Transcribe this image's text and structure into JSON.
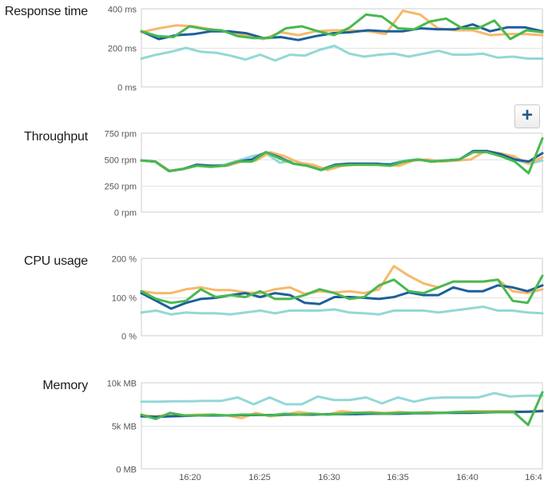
{
  "colors": {
    "series_a": "#f6b96b",
    "series_b": "#1d5f9a",
    "series_c": "#48b94f",
    "series_d": "#93d8d6",
    "grid": "#e3e3e3",
    "frame": "#cfcfcf"
  },
  "add_button": {
    "label": "+",
    "icon": "plus-icon"
  },
  "chart_data": [
    {
      "type": "line",
      "title": "Response time",
      "ylim": [
        0,
        400
      ],
      "yticks": [
        "0 ms",
        "200 ms",
        "400 ms"
      ],
      "ytick_values": [
        0,
        200,
        400
      ],
      "grid": true,
      "series": [
        {
          "values": [
            280,
            300,
            315,
            310,
            295,
            280,
            265,
            245,
            280,
            265,
            285,
            290,
            290,
            285,
            270,
            390,
            370,
            300,
            290,
            290,
            265,
            270,
            270,
            265
          ]
        },
        {
          "values": [
            285,
            245,
            265,
            270,
            285,
            285,
            275,
            250,
            255,
            240,
            260,
            275,
            280,
            290,
            285,
            285,
            300,
            295,
            295,
            320,
            285,
            305,
            305,
            285
          ]
        },
        {
          "values": [
            285,
            260,
            255,
            310,
            295,
            290,
            260,
            250,
            250,
            300,
            310,
            285,
            265,
            305,
            370,
            360,
            300,
            295,
            335,
            350,
            300,
            300,
            340,
            245,
            290,
            280
          ]
        },
        {
          "values": [
            145,
            165,
            180,
            200,
            180,
            175,
            160,
            140,
            165,
            135,
            165,
            160,
            190,
            210,
            170,
            155,
            165,
            170,
            155,
            170,
            185,
            165,
            165,
            170,
            150,
            155,
            145,
            145
          ]
        }
      ]
    },
    {
      "type": "line",
      "title": "Throughput",
      "ylim": [
        0,
        750
      ],
      "yticks": [
        "0 rpm",
        "250 rpm",
        "500 rpm",
        "750 rpm"
      ],
      "ytick_values": [
        0,
        250,
        500,
        750
      ],
      "grid": true,
      "series": [
        {
          "values": [
            490,
            480,
            390,
            410,
            450,
            440,
            440,
            480,
            490,
            570,
            530,
            470,
            450,
            400,
            440,
            450,
            450,
            450,
            440,
            490,
            500,
            480,
            490,
            500,
            580,
            560,
            530,
            460,
            520
          ]
        },
        {
          "values": [
            490,
            480,
            390,
            410,
            450,
            440,
            440,
            480,
            500,
            570,
            520,
            460,
            440,
            400,
            450,
            460,
            460,
            460,
            450,
            480,
            500,
            480,
            490,
            500,
            580,
            580,
            550,
            500,
            480,
            560
          ]
        },
        {
          "values": [
            490,
            480,
            390,
            410,
            440,
            430,
            440,
            480,
            480,
            570,
            510,
            460,
            440,
            400,
            440,
            450,
            450,
            450,
            440,
            480,
            500,
            480,
            490,
            500,
            570,
            570,
            530,
            480,
            370,
            700
          ]
        },
        {
          "values": [
            490,
            480,
            390,
            410,
            440,
            440,
            450,
            490,
            530,
            560,
            470,
            490,
            450,
            410,
            450,
            460,
            460,
            450,
            460,
            490,
            500,
            490,
            490,
            500,
            570,
            570,
            540,
            500,
            460,
            490
          ]
        }
      ]
    },
    {
      "type": "line",
      "title": "CPU usage",
      "ylim": [
        0,
        200
      ],
      "yticks": [
        "0 %",
        "100 %",
        "200 %"
      ],
      "ytick_values": [
        0,
        100,
        200
      ],
      "grid": true,
      "series": [
        {
          "values": [
            115,
            110,
            110,
            120,
            125,
            118,
            118,
            112,
            110,
            120,
            125,
            108,
            115,
            112,
            115,
            110,
            120,
            180,
            155,
            135,
            125,
            140,
            140,
            140,
            145,
            115,
            110,
            120
          ]
        },
        {
          "values": [
            110,
            90,
            70,
            85,
            95,
            98,
            105,
            110,
            100,
            110,
            105,
            85,
            82,
            100,
            100,
            98,
            95,
            100,
            112,
            105,
            105,
            125,
            115,
            115,
            130,
            125,
            115,
            130
          ]
        },
        {
          "values": [
            115,
            95,
            85,
            90,
            120,
            100,
            105,
            100,
            115,
            95,
            95,
            105,
            120,
            110,
            95,
            100,
            130,
            145,
            115,
            110,
            125,
            140,
            140,
            140,
            145,
            90,
            85,
            155
          ]
        },
        {
          "values": [
            60,
            65,
            55,
            60,
            58,
            58,
            55,
            60,
            65,
            58,
            65,
            65,
            65,
            68,
            60,
            58,
            55,
            65,
            65,
            65,
            60,
            65,
            70,
            75,
            65,
            65,
            60,
            58
          ]
        }
      ]
    },
    {
      "type": "line",
      "title": "Memory",
      "ylim": [
        0,
        10000
      ],
      "yticks": [
        "0 MB",
        "5k MB",
        "10k MB"
      ],
      "ytick_values": [
        0,
        5000,
        10000
      ],
      "xticks": [
        "16:20",
        "16:25",
        "16:30",
        "16:35",
        "16:40",
        "16:4"
      ],
      "grid": true,
      "series": [
        {
          "values": [
            6200,
            6100,
            6300,
            6200,
            6300,
            6300,
            6200,
            5900,
            6500,
            6100,
            6300,
            6600,
            6400,
            6300,
            6700,
            6500,
            6600,
            6500,
            6600,
            6500,
            6600,
            6500,
            6600,
            6700,
            6700,
            6700,
            6700,
            6600,
            6800
          ]
        },
        {
          "values": [
            6100,
            6050,
            6100,
            6150,
            6200,
            6200,
            6200,
            6250,
            6250,
            6250,
            6300,
            6300,
            6300,
            6350,
            6350,
            6350,
            6400,
            6400,
            6400,
            6450,
            6450,
            6500,
            6500,
            6500,
            6550,
            6600,
            6600,
            6650,
            6700
          ]
        },
        {
          "values": [
            6300,
            5800,
            6500,
            6200,
            6200,
            6300,
            6200,
            6300,
            6300,
            6200,
            6400,
            6300,
            6400,
            6300,
            6400,
            6500,
            6500,
            6400,
            6500,
            6500,
            6500,
            6500,
            6600,
            6600,
            6600,
            6600,
            6600,
            5100,
            8900
          ]
        },
        {
          "values": [
            7800,
            7800,
            7850,
            7850,
            7900,
            7900,
            8300,
            7500,
            8300,
            7500,
            7500,
            8400,
            8000,
            8000,
            8300,
            7600,
            8300,
            7800,
            8200,
            8300,
            8300,
            8300,
            8800,
            8400,
            8500,
            8500
          ]
        }
      ]
    }
  ]
}
